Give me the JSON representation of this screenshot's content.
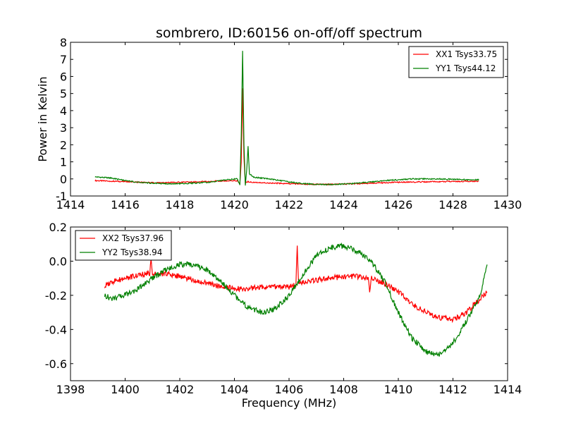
{
  "title": "sombrero, ID:60156 on-off/off spectrum",
  "colors": {
    "xx": "#ff0000",
    "yy": "#008000",
    "axes": "#000000"
  },
  "chart_data": [
    {
      "type": "line",
      "ylabel": "Power in Kelvin",
      "xlabel": "",
      "xlim": [
        1414,
        1430
      ],
      "ylim": [
        -1,
        8
      ],
      "xticks": [
        1414,
        1416,
        1418,
        1420,
        1422,
        1424,
        1426,
        1428,
        1430
      ],
      "yticks": [
        -1,
        0,
        1,
        2,
        3,
        4,
        5,
        6,
        7,
        8
      ],
      "grid": false,
      "legend_position": "top-right",
      "series": [
        {
          "name": "XX1 Tsys33.75",
          "color": "#ff0000",
          "x": [
            1414.9,
            1415.5,
            1416.0,
            1416.5,
            1417.0,
            1417.5,
            1418.0,
            1418.5,
            1419.0,
            1419.5,
            1419.9,
            1420.1,
            1420.2,
            1420.25,
            1420.3,
            1420.35,
            1420.4,
            1420.5,
            1420.7,
            1421.0,
            1421.5,
            1422.0,
            1422.5,
            1423.0,
            1423.5,
            1424.0,
            1424.5,
            1425.0,
            1425.5,
            1426.0,
            1426.5,
            1427.0,
            1427.5,
            1428.0,
            1428.5,
            1428.95
          ],
          "y": [
            -0.1,
            -0.13,
            -0.16,
            -0.2,
            -0.22,
            -0.22,
            -0.2,
            -0.18,
            -0.15,
            -0.12,
            -0.1,
            -0.1,
            -0.3,
            1.0,
            5.3,
            1.2,
            -0.25,
            -0.15,
            -0.2,
            -0.22,
            -0.25,
            -0.28,
            -0.3,
            -0.32,
            -0.32,
            -0.3,
            -0.28,
            -0.25,
            -0.22,
            -0.2,
            -0.18,
            -0.17,
            -0.16,
            -0.15,
            -0.14,
            -0.13
          ]
        },
        {
          "name": "YY1 Tsys44.12",
          "color": "#008000",
          "x": [
            1414.9,
            1415.5,
            1416.0,
            1416.5,
            1417.0,
            1417.5,
            1418.0,
            1418.5,
            1419.0,
            1419.5,
            1419.9,
            1420.1,
            1420.2,
            1420.25,
            1420.3,
            1420.35,
            1420.4,
            1420.45,
            1420.5,
            1420.55,
            1420.7,
            1421.0,
            1421.5,
            1422.0,
            1422.5,
            1423.0,
            1423.5,
            1424.0,
            1424.5,
            1425.0,
            1425.5,
            1426.0,
            1426.5,
            1427.0,
            1427.5,
            1428.0,
            1428.5,
            1428.95
          ],
          "y": [
            0.12,
            0.05,
            -0.1,
            -0.2,
            -0.25,
            -0.28,
            -0.28,
            -0.25,
            -0.2,
            -0.1,
            -0.02,
            0.0,
            -0.35,
            2.5,
            7.5,
            2.0,
            -0.4,
            0.5,
            1.9,
            0.3,
            0.1,
            0.05,
            -0.05,
            -0.18,
            -0.27,
            -0.32,
            -0.33,
            -0.3,
            -0.25,
            -0.18,
            -0.1,
            -0.05,
            0.0,
            0.0,
            0.0,
            -0.02,
            -0.05,
            -0.05
          ]
        }
      ]
    },
    {
      "type": "line",
      "xlabel": "Frequency (MHz)",
      "ylabel": "",
      "xlim": [
        1398,
        1414
      ],
      "ylim": [
        -0.7,
        0.2
      ],
      "xticks": [
        1398,
        1400,
        1402,
        1404,
        1406,
        1408,
        1410,
        1412,
        1414
      ],
      "yticks": [
        -0.6,
        -0.4,
        -0.2,
        0.0,
        0.2
      ],
      "grid": false,
      "legend_position": "top-left",
      "series": [
        {
          "name": "XX2 Tsys37.96",
          "color": "#ff0000",
          "x": [
            1399.25,
            1399.5,
            1400.0,
            1400.5,
            1400.9,
            1400.95,
            1401.0,
            1401.5,
            1402.0,
            1402.5,
            1403.0,
            1403.5,
            1404.0,
            1404.5,
            1405.0,
            1405.5,
            1406.0,
            1406.25,
            1406.3,
            1406.35,
            1406.5,
            1407.0,
            1407.5,
            1408.0,
            1408.5,
            1408.9,
            1408.95,
            1409.0,
            1409.5,
            1410.0,
            1410.5,
            1411.0,
            1411.5,
            1412.0,
            1412.5,
            1413.0,
            1413.25
          ],
          "y": [
            -0.15,
            -0.12,
            -0.1,
            -0.08,
            -0.07,
            0.0,
            -0.08,
            -0.07,
            -0.09,
            -0.11,
            -0.13,
            -0.15,
            -0.16,
            -0.16,
            -0.15,
            -0.15,
            -0.15,
            -0.14,
            0.09,
            -0.14,
            -0.12,
            -0.11,
            -0.1,
            -0.09,
            -0.09,
            -0.1,
            -0.18,
            -0.1,
            -0.13,
            -0.18,
            -0.25,
            -0.3,
            -0.33,
            -0.34,
            -0.3,
            -0.22,
            -0.18
          ]
        },
        {
          "name": "YY2 Tsys38.94",
          "color": "#008000",
          "x": [
            1399.25,
            1399.5,
            1400.0,
            1400.5,
            1401.0,
            1401.5,
            1402.0,
            1402.5,
            1403.0,
            1403.5,
            1404.0,
            1404.5,
            1405.0,
            1405.5,
            1406.0,
            1406.5,
            1407.0,
            1407.5,
            1408.0,
            1408.5,
            1409.0,
            1409.5,
            1410.0,
            1410.5,
            1411.0,
            1411.5,
            1412.0,
            1412.5,
            1413.0,
            1413.25
          ],
          "y": [
            -0.2,
            -0.22,
            -0.2,
            -0.16,
            -0.1,
            -0.05,
            -0.02,
            -0.02,
            -0.05,
            -0.12,
            -0.2,
            -0.27,
            -0.3,
            -0.28,
            -0.2,
            -0.08,
            0.03,
            0.08,
            0.09,
            0.06,
            0.0,
            -0.12,
            -0.3,
            -0.45,
            -0.53,
            -0.55,
            -0.48,
            -0.35,
            -0.2,
            -0.02
          ]
        }
      ]
    }
  ]
}
